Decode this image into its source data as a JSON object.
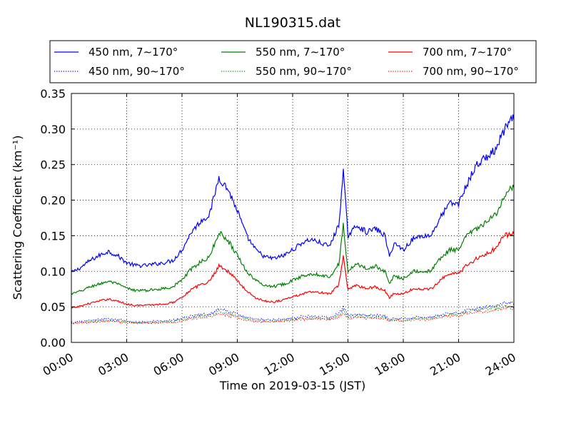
{
  "chart_data": {
    "type": "line",
    "title": "NL190315.dat",
    "xlabel": "Time on 2019-03-15 (JST)",
    "ylabel": "Scattering Coefficient (km⁻¹)",
    "xlim": [
      "00:00",
      "24:00"
    ],
    "ylim": [
      0,
      0.35
    ],
    "x_ticks": [
      "00:00",
      "03:00",
      "06:00",
      "09:00",
      "12:00",
      "15:00",
      "18:00",
      "21:00",
      "24:00"
    ],
    "y_ticks": [
      "0.00",
      "0.05",
      "0.10",
      "0.15",
      "0.20",
      "0.25",
      "0.30",
      "0.35"
    ],
    "grid": true,
    "legend_position": "top",
    "x_hours": [
      0,
      0.5,
      1,
      1.5,
      2,
      2.5,
      3,
      3.5,
      4,
      4.5,
      5,
      5.5,
      6,
      6.5,
      7,
      7.5,
      8,
      8.5,
      9,
      9.5,
      10,
      10.5,
      11,
      11.5,
      12,
      12.5,
      13,
      13.5,
      14,
      14.5,
      14.75,
      15,
      15.5,
      16,
      16.5,
      17,
      17.25,
      17.5,
      18,
      18.5,
      19,
      19.5,
      20,
      20.5,
      21,
      21.5,
      22,
      22.5,
      23,
      23.5,
      24
    ],
    "series": [
      {
        "name": "450 nm, 7∼170°",
        "color": "#0000ff",
        "style": "solid",
        "values": [
          0.098,
          0.105,
          0.115,
          0.122,
          0.128,
          0.122,
          0.112,
          0.108,
          0.108,
          0.11,
          0.112,
          0.115,
          0.13,
          0.155,
          0.17,
          0.18,
          0.232,
          0.215,
          0.185,
          0.15,
          0.13,
          0.12,
          0.118,
          0.122,
          0.13,
          0.14,
          0.145,
          0.14,
          0.135,
          0.165,
          0.24,
          0.15,
          0.165,
          0.155,
          0.16,
          0.15,
          0.12,
          0.14,
          0.13,
          0.145,
          0.15,
          0.15,
          0.175,
          0.195,
          0.195,
          0.225,
          0.25,
          0.26,
          0.27,
          0.3,
          0.315
        ]
      },
      {
        "name": "550 nm, 7∼170°",
        "color": "#008000",
        "style": "solid",
        "values": [
          0.068,
          0.072,
          0.078,
          0.082,
          0.086,
          0.082,
          0.076,
          0.073,
          0.073,
          0.074,
          0.076,
          0.078,
          0.088,
          0.103,
          0.113,
          0.12,
          0.155,
          0.143,
          0.123,
          0.1,
          0.087,
          0.08,
          0.079,
          0.082,
          0.087,
          0.093,
          0.097,
          0.095,
          0.092,
          0.11,
          0.165,
          0.1,
          0.11,
          0.104,
          0.107,
          0.1,
          0.083,
          0.093,
          0.09,
          0.1,
          0.1,
          0.1,
          0.118,
          0.13,
          0.13,
          0.152,
          0.16,
          0.168,
          0.18,
          0.205,
          0.22
        ]
      },
      {
        "name": "700 nm, 7∼170°",
        "color": "#ff0000",
        "style": "solid",
        "values": [
          0.048,
          0.051,
          0.055,
          0.058,
          0.061,
          0.058,
          0.054,
          0.052,
          0.052,
          0.053,
          0.054,
          0.056,
          0.064,
          0.074,
          0.081,
          0.086,
          0.108,
          0.1,
          0.087,
          0.072,
          0.063,
          0.058,
          0.057,
          0.06,
          0.064,
          0.068,
          0.071,
          0.07,
          0.068,
          0.08,
          0.12,
          0.075,
          0.08,
          0.076,
          0.078,
          0.073,
          0.062,
          0.069,
          0.068,
          0.075,
          0.075,
          0.075,
          0.088,
          0.097,
          0.097,
          0.11,
          0.118,
          0.124,
          0.132,
          0.15,
          0.155
        ]
      },
      {
        "name": "450 nm, 90∼170°",
        "color": "#0000ff",
        "style": "dotted",
        "values": [
          0.028,
          0.029,
          0.031,
          0.032,
          0.033,
          0.032,
          0.03,
          0.029,
          0.029,
          0.03,
          0.03,
          0.031,
          0.034,
          0.037,
          0.039,
          0.04,
          0.047,
          0.044,
          0.04,
          0.035,
          0.033,
          0.032,
          0.032,
          0.033,
          0.034,
          0.036,
          0.037,
          0.036,
          0.035,
          0.04,
          0.05,
          0.038,
          0.039,
          0.038,
          0.038,
          0.037,
          0.032,
          0.034,
          0.033,
          0.035,
          0.036,
          0.036,
          0.039,
          0.041,
          0.041,
          0.046,
          0.048,
          0.05,
          0.052,
          0.056,
          0.055
        ]
      },
      {
        "name": "550 nm, 90∼170°",
        "color": "#008000",
        "style": "dotted",
        "values": [
          0.027,
          0.028,
          0.029,
          0.03,
          0.031,
          0.03,
          0.029,
          0.028,
          0.028,
          0.028,
          0.029,
          0.029,
          0.032,
          0.035,
          0.037,
          0.038,
          0.043,
          0.041,
          0.037,
          0.033,
          0.031,
          0.03,
          0.03,
          0.031,
          0.032,
          0.034,
          0.034,
          0.034,
          0.033,
          0.037,
          0.045,
          0.036,
          0.037,
          0.036,
          0.036,
          0.035,
          0.031,
          0.032,
          0.031,
          0.033,
          0.034,
          0.034,
          0.037,
          0.039,
          0.039,
          0.043,
          0.045,
          0.047,
          0.048,
          0.051,
          0.05
        ]
      },
      {
        "name": "700 nm, 90∼170°",
        "color": "#ff0000",
        "style": "dotted",
        "values": [
          0.026,
          0.027,
          0.028,
          0.029,
          0.03,
          0.029,
          0.028,
          0.027,
          0.027,
          0.027,
          0.028,
          0.028,
          0.03,
          0.033,
          0.035,
          0.036,
          0.04,
          0.038,
          0.035,
          0.031,
          0.029,
          0.029,
          0.029,
          0.03,
          0.031,
          0.032,
          0.033,
          0.033,
          0.032,
          0.035,
          0.042,
          0.034,
          0.035,
          0.034,
          0.034,
          0.033,
          0.03,
          0.031,
          0.03,
          0.032,
          0.032,
          0.032,
          0.035,
          0.037,
          0.037,
          0.041,
          0.043,
          0.044,
          0.045,
          0.048,
          0.047
        ]
      }
    ]
  }
}
